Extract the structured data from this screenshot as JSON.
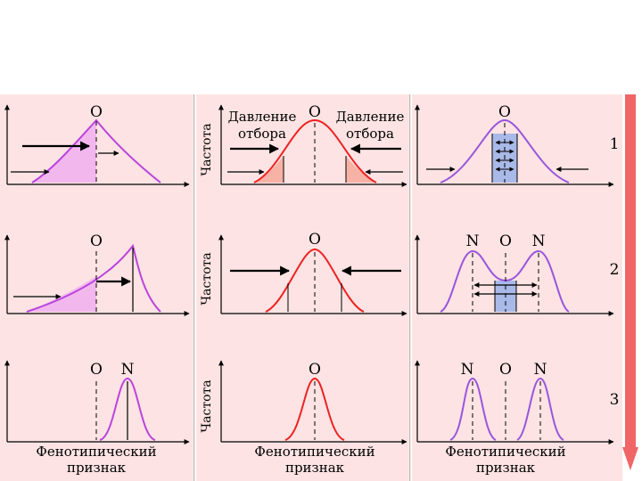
{
  "labels": {
    "optimum": "O",
    "new_norm": "N",
    "frequency": "Частота",
    "pressure_line1": "Давление",
    "pressure_line2": "отбора",
    "trait_line1": "Фенотипический",
    "trait_line2": "признак",
    "row_numbers": [
      "1",
      "2",
      "3"
    ]
  },
  "colors": {
    "panel_bg": "#fde3e3",
    "driving_curve": "#bb44dd",
    "stabilizing_curve": "#ee2222",
    "disruptive_curve": "#9955dd",
    "driving_fill": "#f2b8ee",
    "stabilizing_fill": "#f7b2a6",
    "disruptive_fill": "#a9b9e8",
    "side_arrow": "#f06565"
  }
}
